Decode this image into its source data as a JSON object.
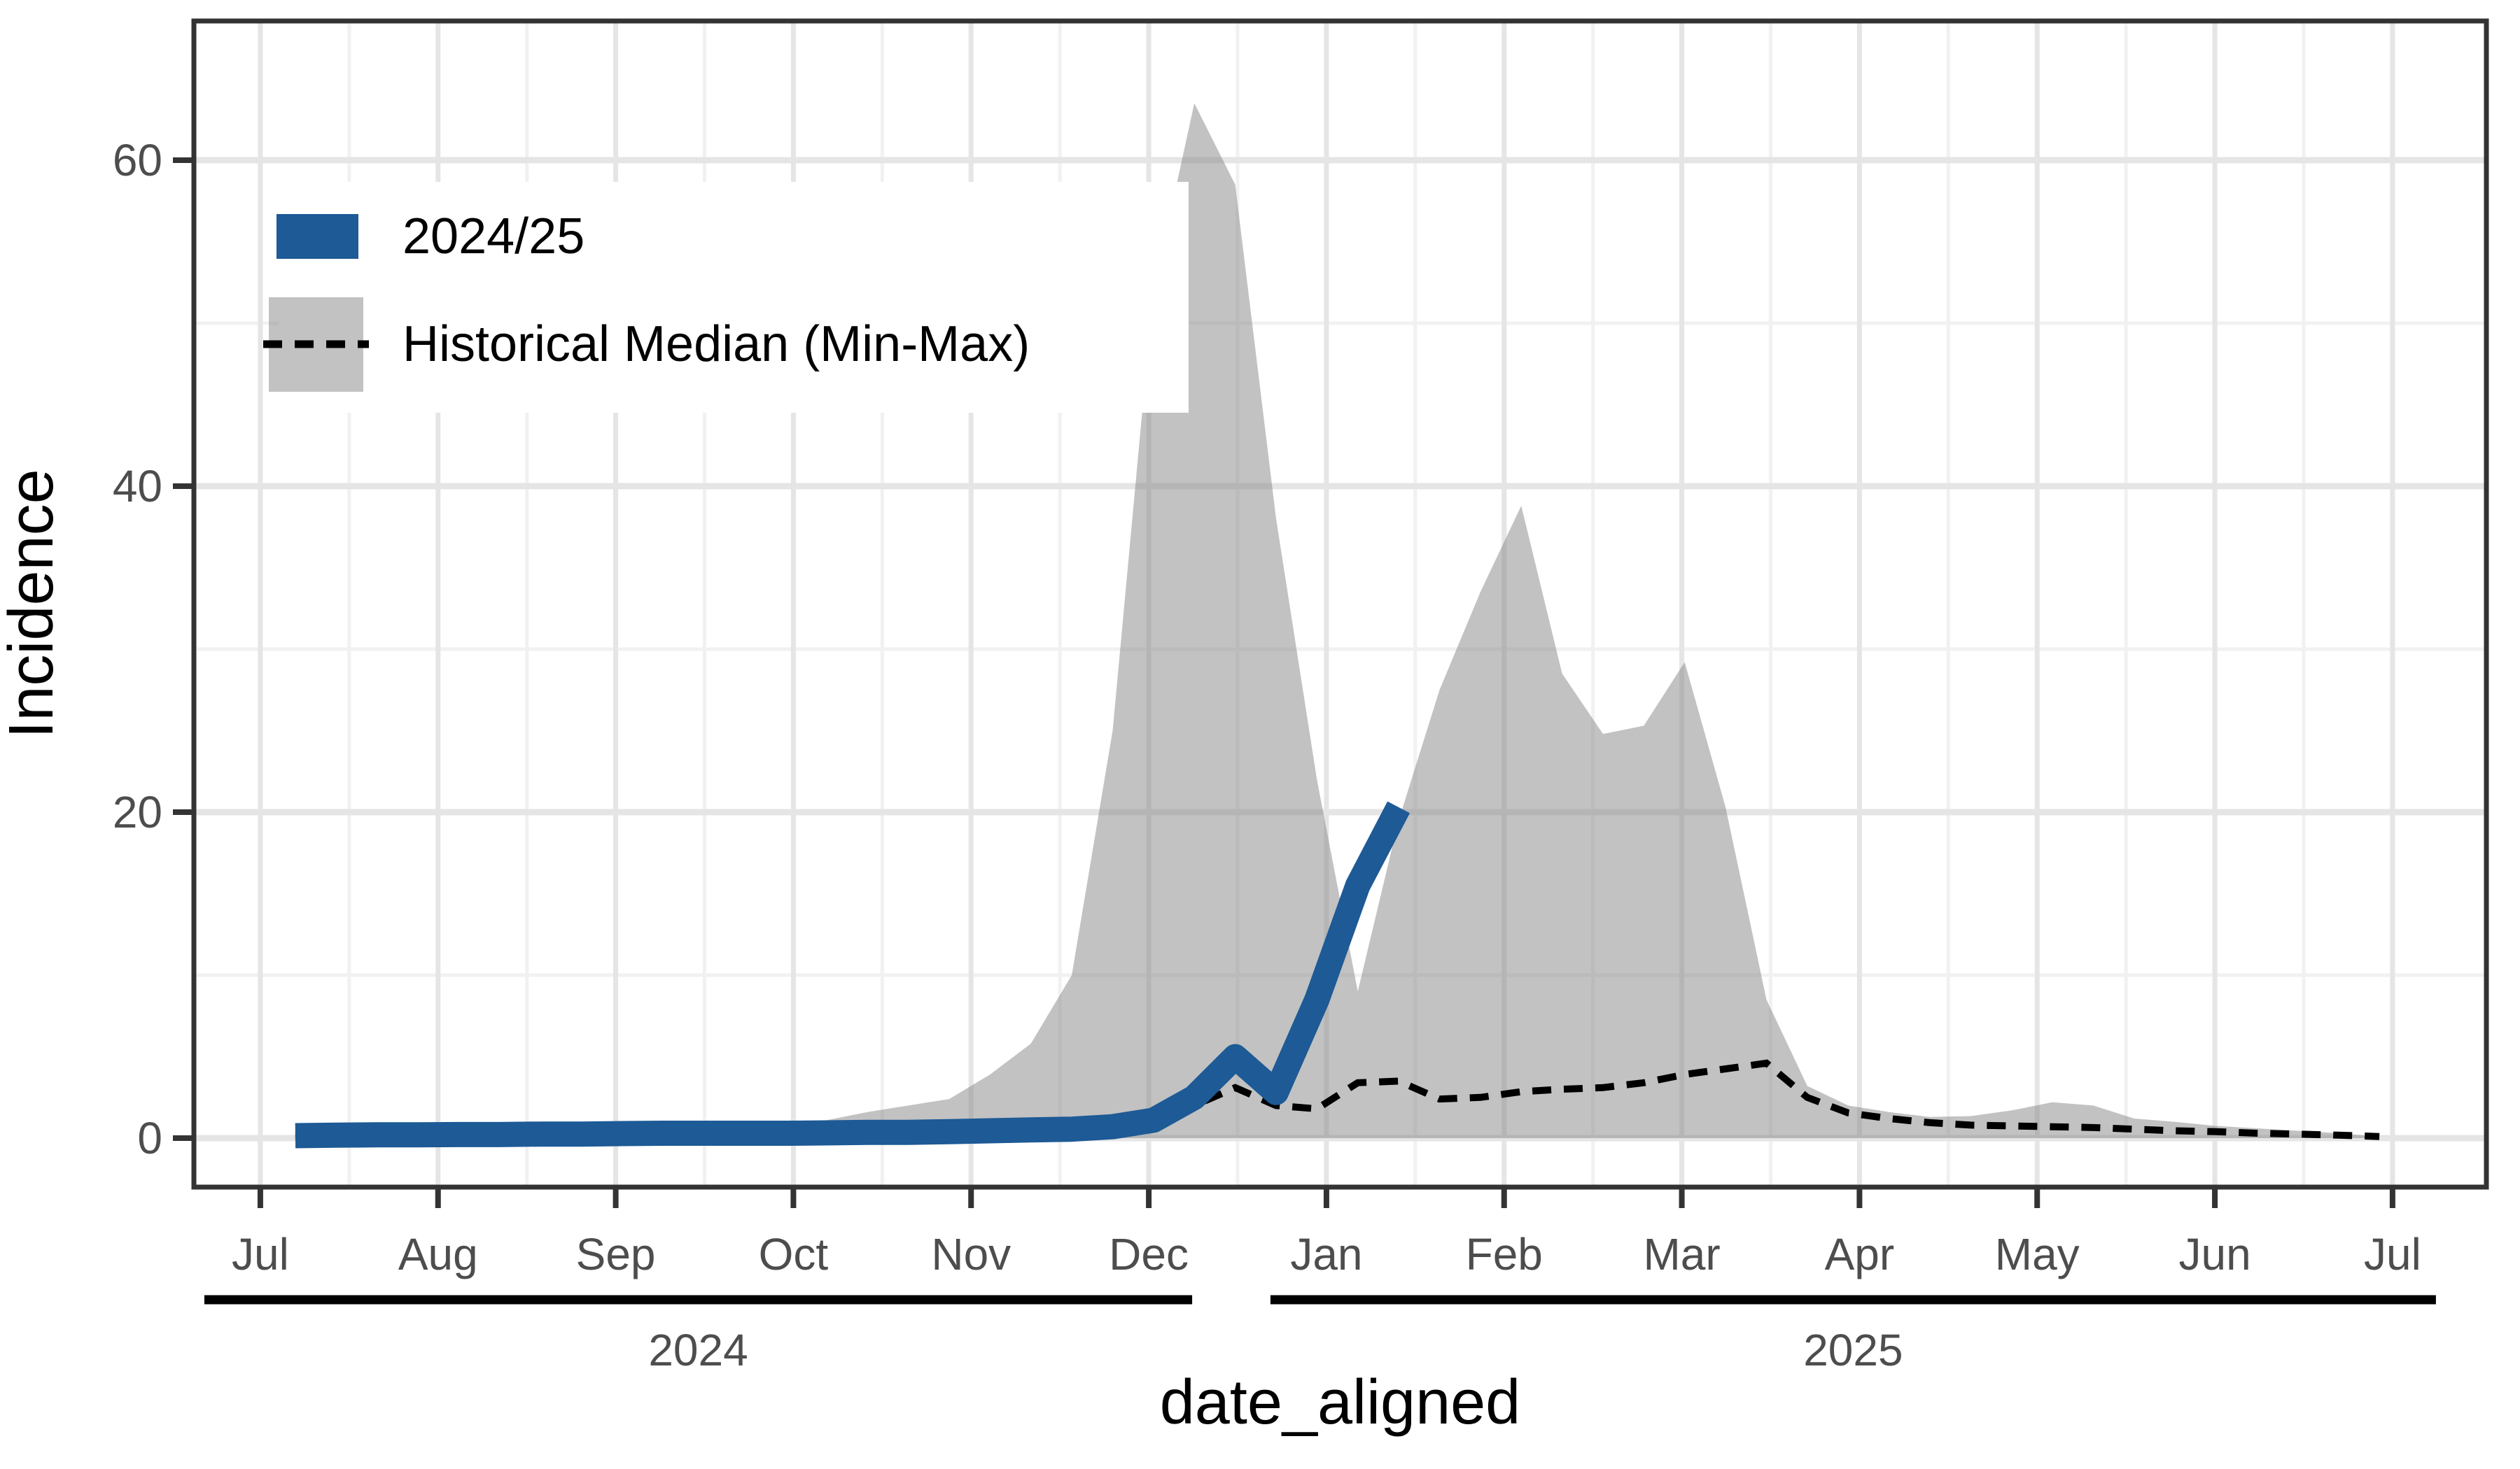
{
  "figure": {
    "background": "#ffffff",
    "description": "Seasonal weekly incidence curve for 2024/25 compared with historical median and min-max envelope, x axis aligned by season (Jul to Jul)"
  },
  "chart_data": {
    "type": "line",
    "title": "",
    "xlabel": "date_aligned",
    "ylabel": "Incidence",
    "x_axis": {
      "tick_labels": [
        "Jul",
        "Aug",
        "Sep",
        "Oct",
        "Nov",
        "Dec",
        "Jan",
        "Feb",
        "Mar",
        "Apr",
        "May",
        "Jun",
        "Jul"
      ],
      "minor_gridlines": "half-month positions",
      "year_groups": [
        {
          "label": "2024",
          "start_month_index": 0,
          "end_month_index": 5
        },
        {
          "label": "2025",
          "start_month_index": 6,
          "end_month_index": 12
        }
      ]
    },
    "y_axis": {
      "tick_labels": [
        "0",
        "20",
        "40",
        "60"
      ],
      "ticks": [
        0,
        20,
        40,
        60
      ],
      "minor_ticks": [
        10,
        30,
        50
      ],
      "range": [
        -3,
        68.5
      ]
    },
    "sampling": "weekly, first point = first week of July",
    "series": [
      {
        "name": "2024/25",
        "kind": "line",
        "color": "#1d5a96",
        "stroke_width": 36,
        "start_week": 0,
        "values": [
          0.15,
          0.18,
          0.2,
          0.2,
          0.22,
          0.22,
          0.25,
          0.25,
          0.28,
          0.3,
          0.3,
          0.3,
          0.3,
          0.32,
          0.35,
          0.35,
          0.4,
          0.45,
          0.5,
          0.55,
          0.7,
          1.1,
          2.5,
          5.0,
          2.8,
          8.5,
          15.5,
          20.3
        ]
      },
      {
        "name": "Historical Median (Min-Max)",
        "kind": "dashed-line",
        "color": "#000000",
        "stroke_width": 10,
        "dash": [
          27,
          18
        ],
        "values": [
          0.1,
          0.1,
          0.1,
          0.12,
          0.12,
          0.15,
          0.15,
          0.15,
          0.18,
          0.18,
          0.2,
          0.2,
          0.2,
          0.22,
          0.25,
          0.28,
          0.3,
          0.35,
          0.4,
          0.5,
          0.6,
          1.1,
          2.0,
          3.1,
          2.0,
          1.8,
          3.4,
          3.5,
          2.4,
          2.5,
          2.85,
          3.0,
          3.1,
          3.4,
          3.9,
          4.25,
          4.6,
          2.5,
          1.55,
          1.2,
          0.95,
          0.8,
          0.75,
          0.7,
          0.65,
          0.55,
          0.45,
          0.4,
          0.3,
          0.25,
          0.18,
          0.1
        ]
      },
      {
        "name": "Historical Min-Max envelope",
        "kind": "ribbon",
        "fill": "rgba(133,133,133,0.5)",
        "min_constant": 0,
        "max": [
          0.4,
          0.42,
          0.45,
          0.45,
          0.5,
          0.5,
          0.55,
          0.6,
          0.65,
          0.7,
          0.75,
          0.8,
          0.9,
          1.1,
          1.6,
          2.0,
          2.4,
          3.9,
          5.8,
          10,
          25,
          52,
          63.5,
          58.5,
          38,
          22,
          9,
          19.5,
          27.5,
          33.5,
          38.8,
          28.5,
          24.8,
          25.3,
          29.2,
          20.3,
          8.5,
          3.2,
          2.0,
          1.6,
          1.3,
          1.35,
          1.7,
          2.2,
          2.0,
          1.2,
          1.0,
          0.75,
          0.6,
          0.45,
          0.3,
          0.1
        ]
      }
    ],
    "legend": {
      "position": "top-left",
      "entries": [
        {
          "label": "2024/25",
          "swatch": "thick-blue-line"
        },
        {
          "label": "Historical Median (Min-Max)",
          "swatch": "gray-box-with-dashed-line"
        }
      ]
    }
  },
  "style": {
    "accent_blue": "#1d5a96",
    "ribbon_fill": "rgba(133,133,133,0.5)",
    "grid_major": "#e5e5e5",
    "grid_minor": "#f1f1f1",
    "panel_border": "#333333",
    "tick_color": "#333333",
    "tick_label_color": "#4d4d4d",
    "axis_title_color": "#000000",
    "year_line_color": "#000000"
  }
}
